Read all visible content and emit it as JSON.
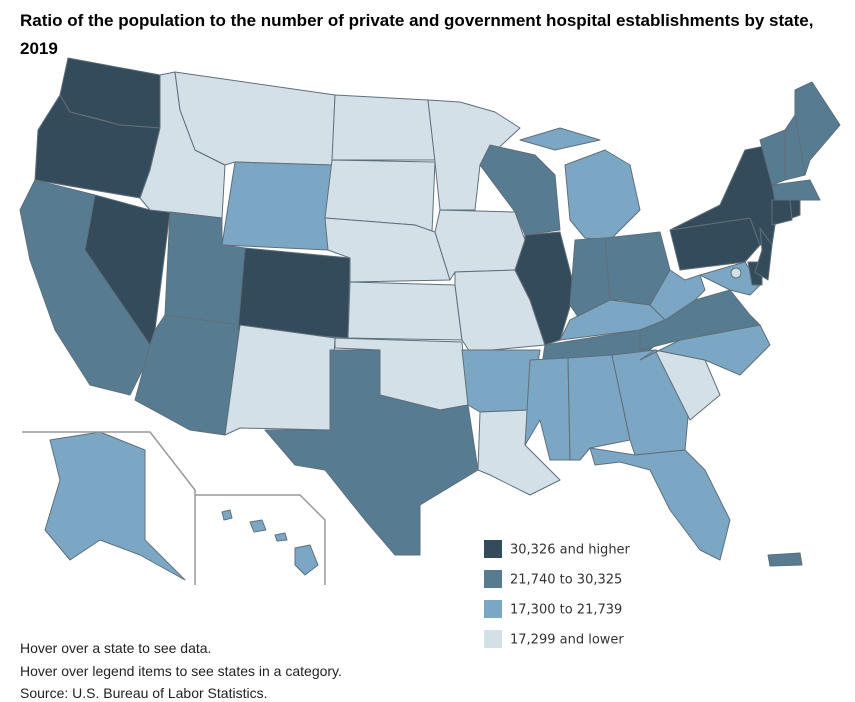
{
  "header": {
    "title": "Ratio of the population to the number of private and government hospital establishments by state, 2019"
  },
  "legend": [
    {
      "label": "30,326 and higher",
      "color": "#344b5b"
    },
    {
      "label": "21,740 to 30,325",
      "color": "#577b91"
    },
    {
      "label": "17,300 to 21,739",
      "color": "#7ca7c4"
    },
    {
      "label": "17,299 and lower",
      "color": "#d3e0e8"
    }
  ],
  "notes": [
    "Hover over a state to see data.",
    "Hover over legend items to see states in a category.",
    "Source: U.S. Bureau of Labor Statistics."
  ]
}
